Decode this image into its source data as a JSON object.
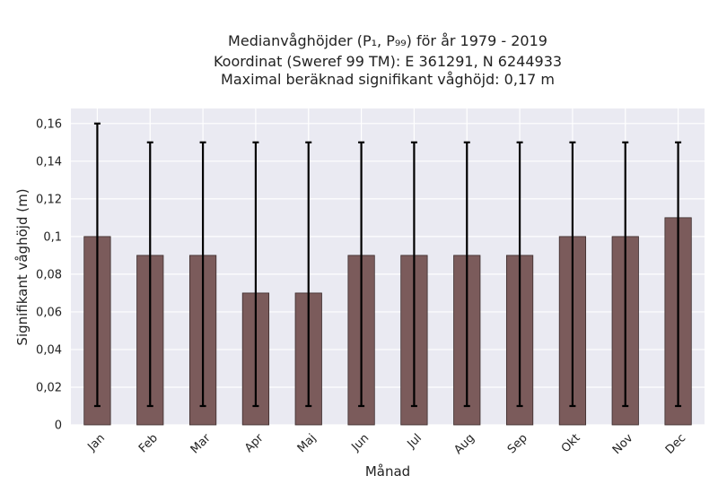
{
  "chart_data": {
    "type": "bar",
    "title_lines": [
      "Medianvåghöjder (P₁, P₉₉) för år 1979 - 2019",
      "Koordinat (Sweref 99 TM): E 361291, N 6244933",
      "Maximal beräknad signifikant våghöjd: 0,17 m"
    ],
    "xlabel": "Månad",
    "ylabel": "Signifikant våghöjd (m)",
    "categories": [
      "Jan",
      "Feb",
      "Mar",
      "Apr",
      "Maj",
      "Jun",
      "Jul",
      "Aug",
      "Sep",
      "Okt",
      "Nov",
      "Dec"
    ],
    "values": [
      0.1,
      0.09,
      0.09,
      0.07,
      0.07,
      0.09,
      0.09,
      0.09,
      0.09,
      0.1,
      0.1,
      0.11
    ],
    "error_low": [
      0.01,
      0.01,
      0.01,
      0.01,
      0.01,
      0.01,
      0.01,
      0.01,
      0.01,
      0.01,
      0.01,
      0.01
    ],
    "error_high": [
      0.16,
      0.15,
      0.15,
      0.15,
      0.15,
      0.15,
      0.15,
      0.15,
      0.15,
      0.15,
      0.15,
      0.15
    ],
    "ylim": [
      0,
      0.168
    ],
    "yticks": [
      0,
      0.02,
      0.04,
      0.06,
      0.08,
      0.1,
      0.12,
      0.14,
      0.16
    ],
    "ytick_labels": [
      "0",
      "0,02",
      "0,04",
      "0,06",
      "0,08",
      "0,1",
      "0,12",
      "0,14",
      "0,16"
    ],
    "grid": true,
    "colors": {
      "bar": "#7b5b5b",
      "bar_edge": "#3a2a2a",
      "plot_bg": "#eaeaf2",
      "grid": "#ffffff",
      "errorbar": "#000000"
    }
  }
}
